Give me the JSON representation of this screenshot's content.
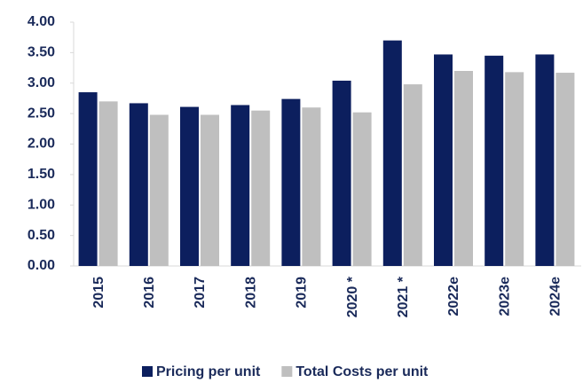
{
  "chart_data": {
    "type": "bar",
    "categories": [
      "2015",
      "2016",
      "2017",
      "2018",
      "2019",
      "2020 *",
      "2021 *",
      "2022e",
      "2023e",
      "2024e"
    ],
    "series": [
      {
        "name": "Pricing per unit",
        "color": "#0c1f5e",
        "values": [
          2.85,
          2.67,
          2.61,
          2.64,
          2.74,
          3.04,
          3.7,
          3.47,
          3.45,
          3.47
        ]
      },
      {
        "name": "Total Costs per unit",
        "color": "#bfbfbf",
        "values": [
          2.7,
          2.48,
          2.48,
          2.55,
          2.6,
          2.52,
          2.98,
          3.2,
          3.18,
          3.17
        ]
      }
    ],
    "ylim": [
      0,
      4
    ],
    "yticks": [
      {
        "value": 0,
        "label": "0.00"
      },
      {
        "value": 0.5,
        "label": "0.50"
      },
      {
        "value": 1,
        "label": "1.00"
      },
      {
        "value": 1.5,
        "label": "1.50"
      },
      {
        "value": 2,
        "label": "2.00"
      },
      {
        "value": 2.5,
        "label": "2.50"
      },
      {
        "value": 3,
        "label": "3.00"
      },
      {
        "value": 3.5,
        "label": "3.50"
      },
      {
        "value": 4,
        "label": "4.00"
      }
    ],
    "legend": "bottom"
  }
}
